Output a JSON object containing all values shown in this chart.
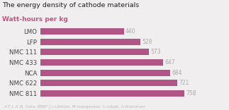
{
  "title": "The energy density of cathode materials",
  "subtitle": "Watt-hours per kg",
  "categories": [
    "LMO",
    "LFP",
    "NMC 111",
    "NMC 433",
    "NCA",
    "NMC 622",
    "NMC 811"
  ],
  "values": [
    440,
    528,
    573,
    647,
    684,
    721,
    758
  ],
  "bar_color": "#b05585",
  "subtitle_color": "#c45585",
  "title_color": "#222222",
  "value_color": "#aaaaaa",
  "label_color": "#444444",
  "footer_atlas": "A T L A S",
  "footer_rest": "  |  Data: BNEF | L-Lithium, M-manganese, C-cobalt, A-Aluminum",
  "background_color": "#f0eeee",
  "xlim": [
    0,
    830
  ],
  "bar_height": 0.62
}
